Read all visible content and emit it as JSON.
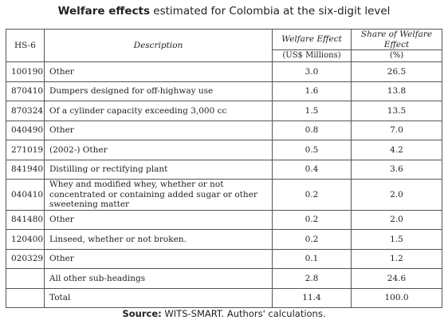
{
  "title": {
    "bold": "Welfare effects",
    "rest": " estimated for Colombia at the six-digit level"
  },
  "headers": {
    "hs": "HS-6",
    "description": "Description",
    "welfare": "Welfare Effect",
    "welfare_unit": "(US$ Millions)",
    "share": "Share of Welfare Effect",
    "share_unit": "(%)"
  },
  "rows": [
    {
      "hs": "100190",
      "desc": "Other",
      "welfare": "3.0",
      "share": "26.5"
    },
    {
      "hs": "870410",
      "desc": "Dumpers designed for off-highway use",
      "welfare": "1.6",
      "share": "13.8"
    },
    {
      "hs": "870324",
      "desc": "Of a cylinder capacity exceeding 3,000 cc",
      "welfare": "1.5",
      "share": "13.5"
    },
    {
      "hs": "040490",
      "desc": "Other",
      "welfare": "0.8",
      "share": "7.0"
    },
    {
      "hs": "271019",
      "desc": "(2002-) Other",
      "welfare": "0.5",
      "share": "4.2"
    },
    {
      "hs": "841940",
      "desc": "Distilling or rectifying plant",
      "welfare": "0.4",
      "share": "3.6"
    },
    {
      "hs": "040410",
      "desc": "Whey and modified whey, whether or not concentrated or containing added sugar or other sweetening matter",
      "welfare": "0.2",
      "share": "2.0"
    },
    {
      "hs": "841480",
      "desc": "Other",
      "welfare": "0.2",
      "share": "2.0"
    },
    {
      "hs": "120400",
      "desc": "Linseed, whether or not broken.",
      "welfare": "0.2",
      "share": "1.5"
    },
    {
      "hs": "020329",
      "desc": "Other",
      "welfare": "0.1",
      "share": "1.2"
    },
    {
      "hs": "",
      "desc": "All other sub-headings",
      "welfare": "2.8",
      "share": "24.6"
    },
    {
      "hs": "",
      "desc": "Total",
      "welfare": "11.4",
      "share": "100.0"
    }
  ],
  "source": {
    "bold": "Source:",
    "rest": " WITS-SMART. Authors' calculations."
  }
}
